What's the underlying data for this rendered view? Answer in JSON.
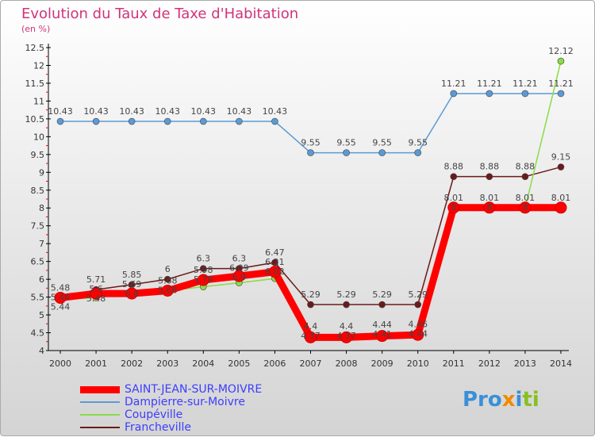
{
  "chart_data": {
    "type": "line",
    "title": "Evolution du Taux de Taxe d'Habitation",
    "subtitle": "(en %)",
    "xlabel": "",
    "ylabel": "",
    "x": [
      2000,
      2001,
      2002,
      2003,
      2004,
      2005,
      2006,
      2007,
      2008,
      2009,
      2010,
      2011,
      2012,
      2013,
      2014
    ],
    "ylim": [
      4,
      12.5
    ],
    "yticks": [
      4,
      4.5,
      5,
      5.5,
      6,
      6.5,
      7,
      7.5,
      8,
      8.5,
      9,
      9.5,
      10,
      10.5,
      11,
      11.5,
      12,
      12.5
    ],
    "legend_position": "bottom",
    "series": [
      {
        "name": "SAINT-JEAN-SUR-MOIVRE",
        "color": "#ff0000",
        "values": [
          5.48,
          5.6,
          5.6,
          5.68,
          5.98,
          6.09,
          6.21,
          4.37,
          4.37,
          4.41,
          4.44,
          8.01,
          8.01,
          8.01,
          8.01
        ]
      },
      {
        "name": "Dampierre-sur-Moivre",
        "color": "#5b9bd5",
        "values": [
          10.43,
          10.43,
          10.43,
          10.43,
          10.43,
          10.43,
          10.43,
          9.55,
          9.55,
          9.55,
          9.55,
          11.21,
          11.21,
          11.21,
          11.21
        ]
      },
      {
        "name": "Coupéville",
        "color": "#88dd44",
        "values": [
          5.44,
          5.48,
          5.69,
          5.68,
          5.79,
          5.9,
          6.02,
          4.4,
          4.4,
          4.44,
          4.46,
          8,
          8,
          8,
          12.12
        ]
      },
      {
        "name": "Francheville",
        "color": "#6b1a1a",
        "values": [
          5.44,
          5.71,
          5.85,
          6,
          6.3,
          6.3,
          6.47,
          5.29,
          5.29,
          5.29,
          5.29,
          8.88,
          8.88,
          8.88,
          9.15
        ]
      }
    ]
  },
  "logo": "Proxiti"
}
